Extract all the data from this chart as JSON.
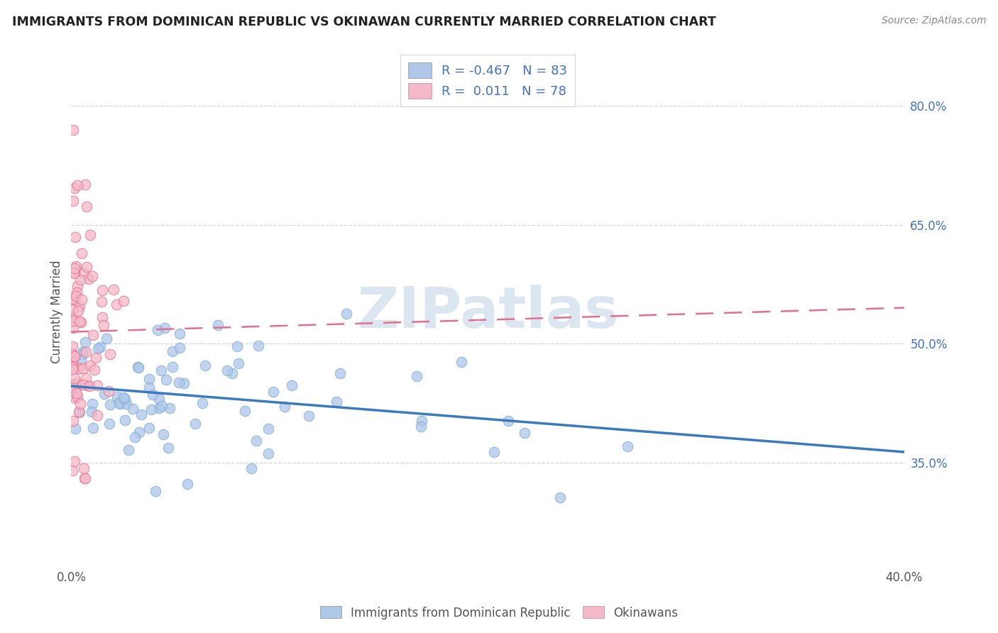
{
  "title": "IMMIGRANTS FROM DOMINICAN REPUBLIC VS OKINAWAN CURRENTLY MARRIED CORRELATION CHART",
  "source": "Source: ZipAtlas.com",
  "ylabel": "Currently Married",
  "ylabel_right_ticks": [
    0.35,
    0.5,
    0.65,
    0.8
  ],
  "ylabel_right_labels": [
    "35.0%",
    "50.0%",
    "65.0%",
    "80.0%"
  ],
  "xlim": [
    0.0,
    0.4
  ],
  "ylim": [
    0.22,
    0.86
  ],
  "legend": {
    "blue_label": "Immigrants from Dominican Republic",
    "pink_label": "Okinawans",
    "blue_R": -0.467,
    "blue_N": 83,
    "pink_R": 0.011,
    "pink_N": 78
  },
  "blue_color": "#aec6e8",
  "blue_edge_color": "#7aadd4",
  "blue_line_color": "#3a7abf",
  "pink_color": "#f4b8c8",
  "pink_edge_color": "#e07090",
  "pink_line_color": "#e07090",
  "grid_color": "#cccccc",
  "watermark_color": "#dce6f0",
  "title_color": "#222222",
  "source_color": "#888888",
  "axis_label_color": "#555555",
  "right_tick_color": "#4472c4"
}
